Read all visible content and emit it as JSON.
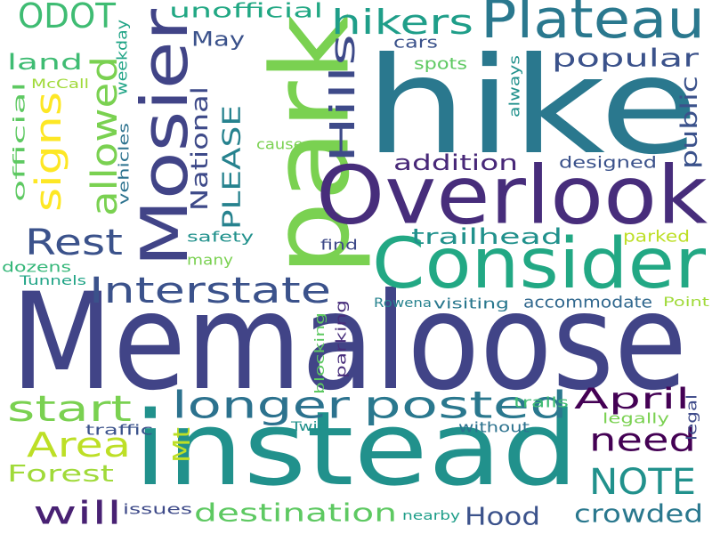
{
  "words": [
    {
      "text": "Memaloose",
      "color": "#414487"
    },
    {
      "text": "hike",
      "color": "#2a788e"
    },
    {
      "text": "instead",
      "color": "#21918c"
    },
    {
      "text": "park",
      "color": "#7ad151"
    },
    {
      "text": "Overlook",
      "color": "#472d7b"
    },
    {
      "text": "Consider",
      "color": "#22a884"
    },
    {
      "text": "Mosier",
      "color": "#414487"
    },
    {
      "text": "Plateau",
      "color": "#2a788e"
    },
    {
      "text": "Interstate",
      "color": "#3b528b"
    },
    {
      "text": "posted",
      "color": "#2a788e"
    },
    {
      "text": "longer",
      "color": "#2c728e"
    },
    {
      "text": "start",
      "color": "#7ad151"
    },
    {
      "text": "Area",
      "color": "#bddf26"
    },
    {
      "text": "need",
      "color": "#440154"
    },
    {
      "text": "Rest",
      "color": "#3b528b"
    },
    {
      "text": "hikers",
      "color": "#1f9e89"
    },
    {
      "text": "Hills",
      "color": "#3e4a89"
    },
    {
      "text": "signs",
      "color": "#fde725"
    },
    {
      "text": "allowed",
      "color": "#7ad151"
    },
    {
      "text": "NOTE",
      "color": "#21918c"
    },
    {
      "text": "ODOT",
      "color": "#3fbc73"
    },
    {
      "text": "will",
      "color": "#482173"
    },
    {
      "text": "destination",
      "color": "#5ec962"
    },
    {
      "text": "crowded",
      "color": "#2a788e"
    },
    {
      "text": "Hood",
      "color": "#3b528b"
    },
    {
      "text": "Forest",
      "color": "#a0da39"
    },
    {
      "text": "April",
      "color": "#440154"
    },
    {
      "text": "PLEASE",
      "color": "#26828e"
    },
    {
      "text": "National",
      "color": "#3e4a89"
    },
    {
      "text": "popular",
      "color": "#3b528b"
    },
    {
      "text": "public",
      "color": "#3b528b"
    },
    {
      "text": "addition",
      "color": "#482878"
    },
    {
      "text": "trailhead",
      "color": "#21918c"
    },
    {
      "text": "unofficial",
      "color": "#22a884"
    },
    {
      "text": "May",
      "color": "#3b528b"
    },
    {
      "text": "land",
      "color": "#3fbc73"
    },
    {
      "text": "Mt",
      "color": "#bddf26"
    },
    {
      "text": "designed",
      "color": "#3b528b"
    },
    {
      "text": "accommodate",
      "color": "#31688e"
    },
    {
      "text": "official",
      "color": "#5ec962"
    },
    {
      "text": "vehicles",
      "color": "#2c728e"
    },
    {
      "text": "weekday",
      "color": "#20a486"
    },
    {
      "text": "McCall",
      "color": "#a0da39"
    },
    {
      "text": "cars",
      "color": "#3b528b"
    },
    {
      "text": "spots",
      "color": "#5ec962"
    },
    {
      "text": "always",
      "color": "#21918c"
    },
    {
      "text": "causes",
      "color": "#7ad151"
    },
    {
      "text": "safety",
      "color": "#21918c"
    },
    {
      "text": "many",
      "color": "#7ad151"
    },
    {
      "text": "find",
      "color": "#3e4a89"
    },
    {
      "text": "parked",
      "color": "#bddf26"
    },
    {
      "text": "dozens",
      "color": "#35b779"
    },
    {
      "text": "Tunnels",
      "color": "#20a486"
    },
    {
      "text": "Rowena",
      "color": "#26828e"
    },
    {
      "text": "visiting",
      "color": "#2a788e"
    },
    {
      "text": "Point",
      "color": "#a0da39"
    },
    {
      "text": "parking",
      "color": "#472d7b"
    },
    {
      "text": "blocking",
      "color": "#5ec962"
    },
    {
      "text": "trails",
      "color": "#3fbc73"
    },
    {
      "text": "legally",
      "color": "#7ad151"
    },
    {
      "text": "legal",
      "color": "#3e4a89"
    },
    {
      "text": "traffic",
      "color": "#3b528b"
    },
    {
      "text": "Twin",
      "color": "#21918c"
    },
    {
      "text": "without",
      "color": "#2c728e"
    },
    {
      "text": "issues",
      "color": "#3e4a89"
    },
    {
      "text": "nearby",
      "color": "#1f9e89"
    }
  ]
}
